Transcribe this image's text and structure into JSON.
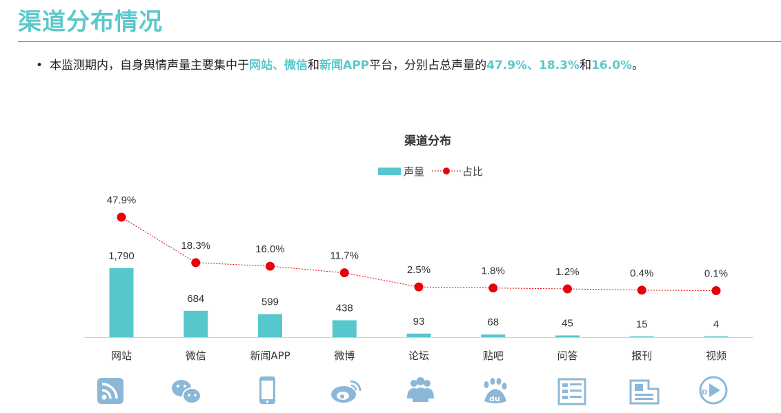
{
  "page": {
    "title": "渠道分布情况",
    "summary": {
      "bullet": "•",
      "t1": "本监测期内，自身舆情声量主要集中于",
      "h1": "网站、微信",
      "t2": "和",
      "h2": "新闻APP",
      "t3": "平台，分别占总声量的",
      "h3": "47.9%、18.3%",
      "t4": "和",
      "h4": "16.0%",
      "t5": "。"
    }
  },
  "colors": {
    "accent": "#5bc8cc",
    "bar": "#56c7cd",
    "line": "#e8000b",
    "icon": "#8cb8d8",
    "rule": "#4a7bb7"
  },
  "chart_data": {
    "type": "bar",
    "title": "渠道分布",
    "categories": [
      "网站",
      "微信",
      "新闻APP",
      "微博",
      "论坛",
      "贴吧",
      "问答",
      "报刊",
      "视频"
    ],
    "series": [
      {
        "name": "声量",
        "type": "bar",
        "values": [
          1790,
          684,
          599,
          438,
          93,
          68,
          45,
          15,
          4
        ],
        "labels": [
          "1,790",
          "684",
          "599",
          "438",
          "93",
          "68",
          "45",
          "15",
          "4"
        ]
      },
      {
        "name": "占比",
        "type": "line",
        "values": [
          47.9,
          18.3,
          16.0,
          11.7,
          2.5,
          1.8,
          1.2,
          0.4,
          0.1
        ],
        "labels": [
          "47.9%",
          "18.3%",
          "16.0%",
          "11.7%",
          "2.5%",
          "1.8%",
          "1.2%",
          "0.4%",
          "0.1%"
        ]
      }
    ],
    "legend": "top-center",
    "grid": false,
    "icons": [
      "rss-icon",
      "wechat-icon",
      "mobile-phone-icon",
      "weibo-icon",
      "forum-people-icon",
      "baidu-tieba-icon",
      "qa-document-icon",
      "newspaper-icon",
      "video-play-icon"
    ]
  }
}
